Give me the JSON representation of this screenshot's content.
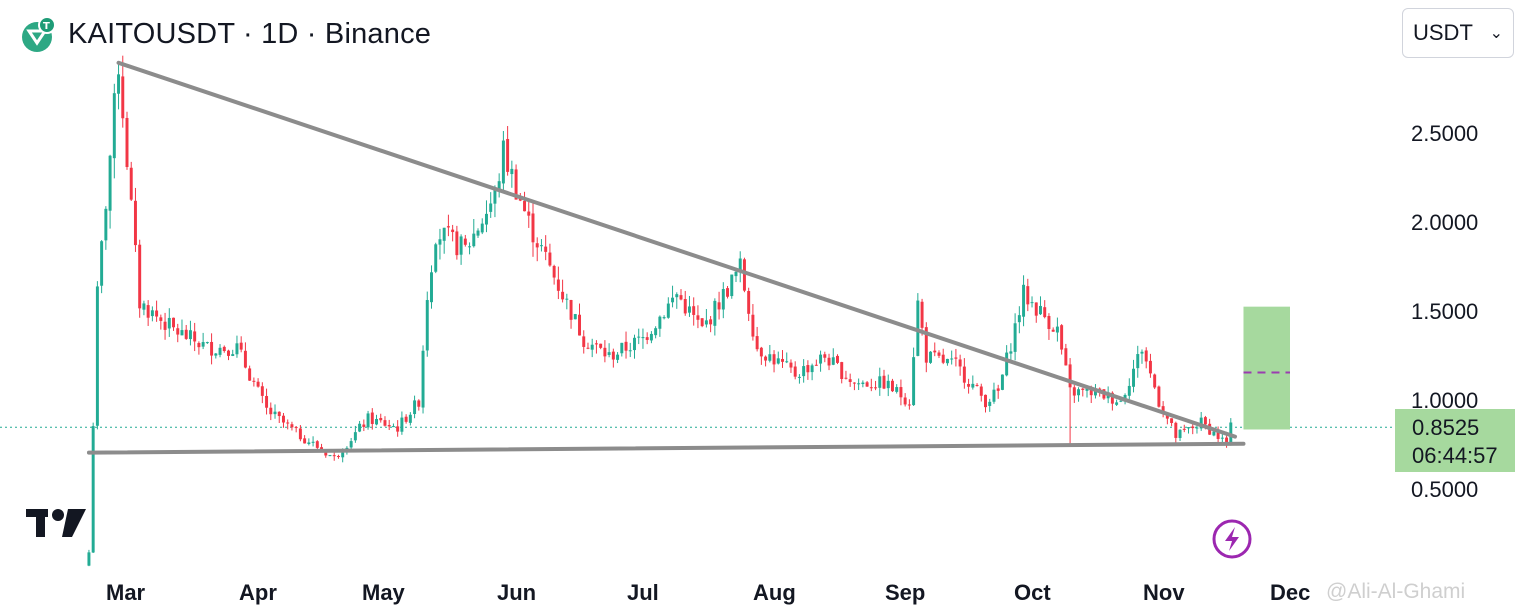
{
  "header": {
    "title": "KAITOUSDT · 1D · Binance",
    "coin_icon": "tether-usdt-icon",
    "coin_color": "#2da884"
  },
  "currency_selector": {
    "value": "USDT"
  },
  "price_label": {
    "price": "0.8525",
    "countdown": "06:44:57",
    "bg": "#a6d99e"
  },
  "colors": {
    "up": "#22ab94",
    "down": "#f23645",
    "trendline": "#8c8c8c",
    "target_box": "#a6d99e",
    "target_mid": "#9b3db0"
  },
  "watermark": "@Ali-Al-Ghami",
  "chart_data": {
    "type": "candlestick",
    "ylim": [
      0.2,
      3.05
    ],
    "yticks": [
      "2.5000",
      "2.0000",
      "1.5000",
      "1.0000",
      "0.5000"
    ],
    "xticks": [
      "Mar",
      "Apr",
      "May",
      "Jun",
      "Jul",
      "Aug",
      "Sep",
      "Oct",
      "Nov",
      "Dec"
    ],
    "current_price": 0.8525,
    "path": [
      [
        "2025-02-20",
        0.15
      ],
      [
        "2025-02-22",
        1.6
      ],
      [
        "2025-02-27",
        2.9
      ],
      [
        "2025-03-04",
        1.55
      ],
      [
        "2025-03-12",
        1.4
      ],
      [
        "2025-03-20",
        1.3
      ],
      [
        "2025-03-27",
        1.3
      ],
      [
        "2025-04-03",
        0.95
      ],
      [
        "2025-04-10",
        0.82
      ],
      [
        "2025-04-19",
        0.68
      ],
      [
        "2025-04-27",
        0.9
      ],
      [
        "2025-05-04",
        0.85
      ],
      [
        "2025-05-09",
        1.0
      ],
      [
        "2025-05-11",
        1.6
      ],
      [
        "2025-05-13",
        1.95
      ],
      [
        "2025-05-20",
        1.85
      ],
      [
        "2025-05-27",
        2.15
      ],
      [
        "2025-05-29",
        2.4
      ],
      [
        "2025-06-04",
        2.0
      ],
      [
        "2025-06-10",
        1.7
      ],
      [
        "2025-06-17",
        1.35
      ],
      [
        "2025-06-23",
        1.25
      ],
      [
        "2025-07-01",
        1.35
      ],
      [
        "2025-07-09",
        1.6
      ],
      [
        "2025-07-15",
        1.4
      ],
      [
        "2025-07-24",
        1.75
      ],
      [
        "2025-07-28",
        1.3
      ],
      [
        "2025-08-06",
        1.15
      ],
      [
        "2025-08-13",
        1.25
      ],
      [
        "2025-08-20",
        1.1
      ],
      [
        "2025-08-27",
        1.1
      ],
      [
        "2025-09-02",
        1.0
      ],
      [
        "2025-09-04",
        1.55
      ],
      [
        "2025-09-06",
        1.25
      ],
      [
        "2025-09-13",
        1.2
      ],
      [
        "2025-09-20",
        1.0
      ],
      [
        "2025-09-23",
        1.05
      ],
      [
        "2025-09-29",
        1.6
      ],
      [
        "2025-10-07",
        1.4
      ],
      [
        "2025-10-10",
        1.05
      ],
      [
        "2025-10-16",
        1.05
      ],
      [
        "2025-10-22",
        1.0
      ],
      [
        "2025-10-27",
        1.3
      ],
      [
        "2025-10-31",
        1.0
      ],
      [
        "2025-11-04",
        0.8
      ],
      [
        "2025-11-10",
        0.88
      ],
      [
        "2025-11-16",
        0.76
      ],
      [
        "2025-11-17",
        0.85
      ]
    ],
    "low_wicks": [
      [
        "2025-02-20",
        0.2
      ],
      [
        "2025-10-10",
        0.75
      ]
    ],
    "trendlines": [
      {
        "from": [
          "2025-02-27",
          2.9
        ],
        "to": [
          "2025-11-18",
          0.8
        ]
      },
      {
        "from": [
          "2025-02-20",
          0.71
        ],
        "to": [
          "2025-11-20",
          0.76
        ]
      }
    ],
    "target_box": {
      "x_from": "2025-11-20",
      "x_to": "2025-12-01",
      "y_from": 0.84,
      "y_to": 1.53,
      "mid": 1.16
    }
  }
}
